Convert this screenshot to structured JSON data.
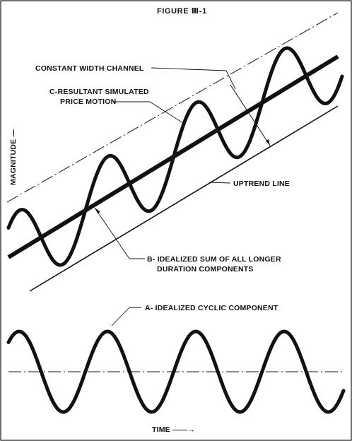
{
  "figure": {
    "title": "FIGURE Ⅲ-1",
    "y_axis_label": "MAGNITUDE —",
    "x_axis_label": "TIME ——→"
  },
  "labels": {
    "constant_width_channel": "CONSTANT WIDTH CHANNEL",
    "resultant_line1": "C-RESULTANT SIMULATED",
    "resultant_line2": "PRICE MOTION",
    "uptrend_line": "UPTREND LINE",
    "sum_line1": "B- IDEALIZED SUM OF ALL LONGER",
    "sum_line2": "DURATION COMPONENTS",
    "cyclic_component": "A- IDEALIZED CYCLIC COMPONENT"
  },
  "colors": {
    "ink": "#111111",
    "background": "#ffffff"
  }
}
